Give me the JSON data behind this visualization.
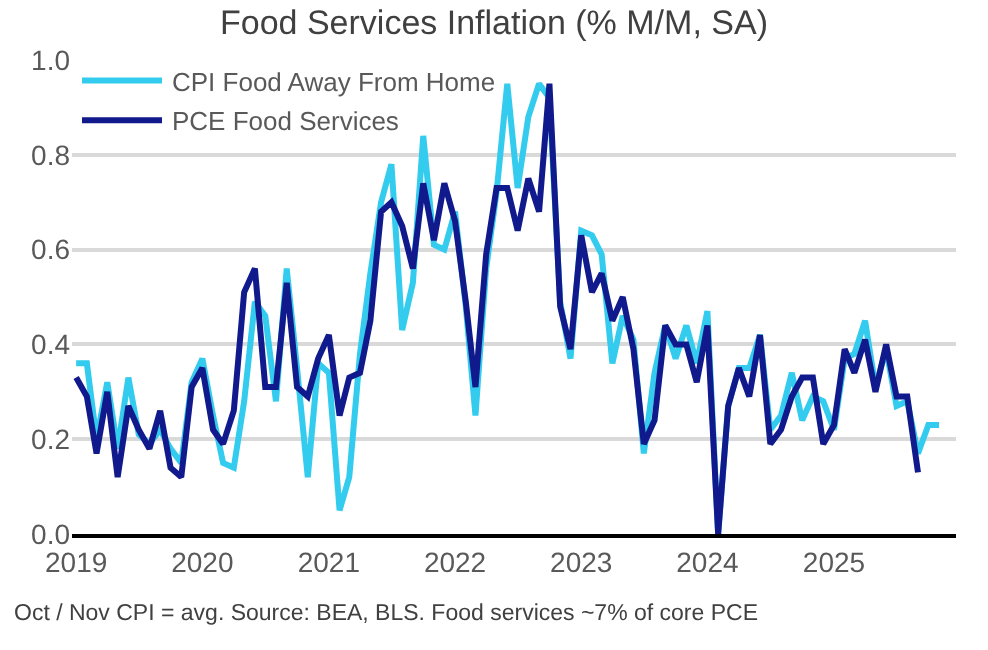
{
  "chart_data": {
    "type": "line",
    "title": "Food Services Inflation (% M/M, SA)",
    "x": [
      "2019-01",
      "2019-02",
      "2019-03",
      "2019-04",
      "2019-05",
      "2019-06",
      "2019-07",
      "2019-08",
      "2019-09",
      "2019-10",
      "2019-11",
      "2019-12",
      "2020-01",
      "2020-02",
      "2020-03",
      "2020-04",
      "2020-05",
      "2020-06",
      "2020-07",
      "2020-08",
      "2020-09",
      "2020-10",
      "2020-11",
      "2020-12",
      "2021-01",
      "2021-02",
      "2021-03",
      "2021-04",
      "2021-05",
      "2021-06",
      "2021-07",
      "2021-08",
      "2021-09",
      "2021-10",
      "2021-11",
      "2021-12",
      "2022-01",
      "2022-02",
      "2022-03",
      "2022-04",
      "2022-05",
      "2022-06",
      "2022-07",
      "2022-08",
      "2022-09",
      "2022-10",
      "2022-11",
      "2022-12",
      "2023-01",
      "2023-02",
      "2023-03",
      "2023-04",
      "2023-05",
      "2023-06",
      "2023-07",
      "2023-08",
      "2023-09",
      "2023-10",
      "2023-11",
      "2023-12",
      "2024-01",
      "2024-02",
      "2024-03",
      "2024-04",
      "2024-05",
      "2024-06",
      "2024-07",
      "2024-08",
      "2024-09",
      "2024-10",
      "2024-11",
      "2024-12",
      "2025-01",
      "2025-02",
      "2025-03",
      "2025-04",
      "2025-05",
      "2025-06",
      "2025-07",
      "2025-08",
      "2025-09",
      "2025-10",
      "2025-11"
    ],
    "series": [
      {
        "name": "CPI Food Away From Home",
        "color": "#33ccee",
        "values": [
          0.36,
          0.36,
          0.2,
          0.32,
          0.18,
          0.33,
          0.21,
          0.19,
          0.22,
          0.18,
          0.15,
          0.32,
          0.37,
          0.25,
          0.15,
          0.14,
          0.28,
          0.49,
          0.46,
          0.28,
          0.56,
          0.35,
          0.12,
          0.36,
          0.34,
          0.05,
          0.12,
          0.38,
          0.55,
          0.7,
          0.78,
          0.43,
          0.53,
          0.84,
          0.61,
          0.6,
          0.68,
          0.48,
          0.25,
          0.56,
          0.72,
          0.95,
          0.73,
          0.88,
          0.95,
          0.92,
          0.49,
          0.37,
          0.64,
          0.63,
          0.59,
          0.36,
          0.46,
          0.41,
          0.17,
          0.34,
          0.44,
          0.37,
          0.44,
          0.36,
          0.47,
          0.0,
          0.27,
          0.35,
          0.35,
          0.42,
          0.22,
          0.25,
          0.34,
          0.24,
          0.29,
          0.28,
          0.22,
          0.37,
          0.38,
          0.45,
          0.31,
          0.39,
          0.27,
          0.28,
          0.17,
          0.23,
          0.23
        ]
      },
      {
        "name": "PCE Food Services",
        "color": "#111a8c",
        "values": [
          0.33,
          0.29,
          0.17,
          0.3,
          0.12,
          0.27,
          0.22,
          0.18,
          0.26,
          0.14,
          0.12,
          0.31,
          0.35,
          0.22,
          0.19,
          0.26,
          0.51,
          0.56,
          0.31,
          0.31,
          0.53,
          0.31,
          0.29,
          0.37,
          0.42,
          0.25,
          0.33,
          0.34,
          0.45,
          0.68,
          0.7,
          0.65,
          0.56,
          0.74,
          0.62,
          0.74,
          0.66,
          0.49,
          0.31,
          0.59,
          0.73,
          0.73,
          0.64,
          0.75,
          0.68,
          0.95,
          0.48,
          0.39,
          0.63,
          0.51,
          0.55,
          0.45,
          0.5,
          0.39,
          0.19,
          0.24,
          0.44,
          0.4,
          0.4,
          0.32,
          0.44,
          0.0,
          0.27,
          0.35,
          0.29,
          0.42,
          0.19,
          0.22,
          0.29,
          0.33,
          0.33,
          0.19,
          0.23,
          0.39,
          0.34,
          0.41,
          0.3,
          0.4,
          0.29,
          0.29,
          0.13,
          null,
          null
        ]
      }
    ],
    "xlim": [
      "2018-12-20",
      "2025-12-20"
    ],
    "xticks": [
      {
        "value": "2019-01-01",
        "label": "2019"
      },
      {
        "value": "2020-01-01",
        "label": "2020"
      },
      {
        "value": "2021-01-01",
        "label": "2021"
      },
      {
        "value": "2022-01-01",
        "label": "2022"
      },
      {
        "value": "2023-01-01",
        "label": "2023"
      },
      {
        "value": "2024-01-01",
        "label": "2024"
      },
      {
        "value": "2025-01-01",
        "label": "2025"
      }
    ],
    "ylim": [
      0,
      1.0
    ],
    "yticks": [
      {
        "value": 0,
        "label": "0.0"
      },
      {
        "value": 0.2,
        "label": "0.2"
      },
      {
        "value": 0.4,
        "label": "0.4"
      },
      {
        "value": 0.6,
        "label": "0.6"
      },
      {
        "value": 0.8,
        "label": "0.8"
      },
      {
        "value": 1.0,
        "label": "1.0"
      }
    ],
    "grid": "y",
    "legend": "top left",
    "line_style": "solid",
    "marker": "none",
    "annotations": [
      "Oct / Nov CPI = avg. Source: BEA, BLS. Food services ~7% of core PCE"
    ]
  }
}
